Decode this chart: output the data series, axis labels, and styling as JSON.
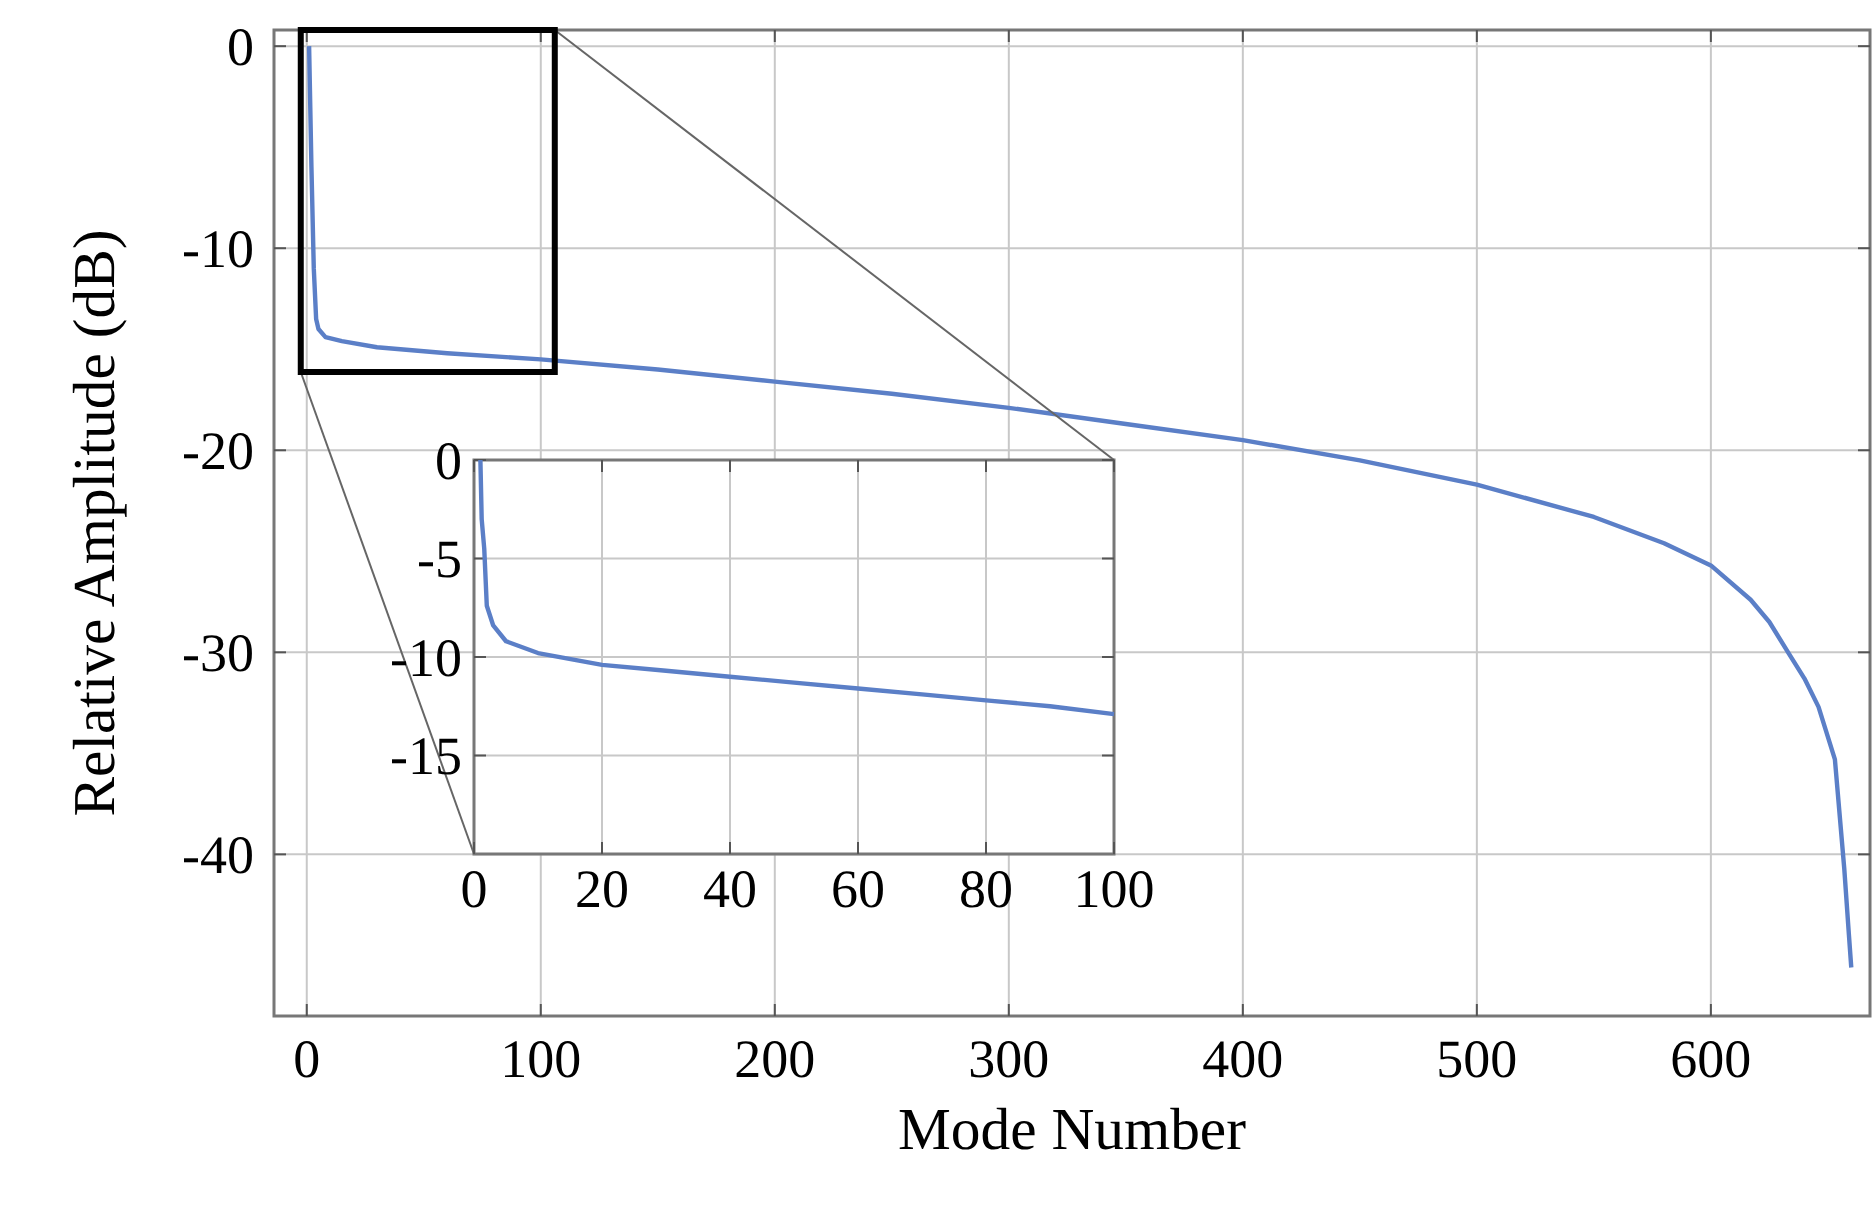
{
  "chart_data": [
    {
      "type": "line",
      "xlabel": "Mode Number",
      "ylabel": "Relative Amplitude (dB)",
      "xlim": [
        -14,
        668
      ],
      "ylim": [
        -48,
        0.8
      ],
      "xticks": [
        0,
        100,
        200,
        300,
        400,
        500,
        600
      ],
      "yticks": [
        0,
        -10,
        -20,
        -30,
        -40
      ],
      "grid": true,
      "series": [
        {
          "color": "#5b7fc7",
          "x": [
            1,
            2,
            3,
            4,
            5,
            8,
            15,
            30,
            60,
            100,
            150,
            200,
            250,
            300,
            350,
            400,
            450,
            500,
            550,
            580,
            600,
            617,
            625,
            633,
            640,
            646,
            653,
            657,
            659,
            660
          ],
          "values": [
            0,
            -6,
            -11,
            -13.5,
            -14,
            -14.4,
            -14.6,
            -14.9,
            -15.2,
            -15.5,
            -16,
            -16.6,
            -17.2,
            -17.9,
            -18.7,
            -19.5,
            -20.5,
            -21.7,
            -23.3,
            -24.6,
            -25.7,
            -27.4,
            -28.5,
            -30,
            -31.3,
            -32.7,
            -35.3,
            -40.7,
            -44,
            -45.6
          ]
        }
      ]
    },
    {
      "type": "line",
      "xlim": [
        0,
        100
      ],
      "ylim": [
        -20,
        0
      ],
      "xticks": [
        0,
        20,
        40,
        60,
        80,
        100
      ],
      "yticks": [
        0,
        -5,
        -10,
        -15
      ],
      "grid": true,
      "series": [
        {
          "color": "#5b7fc7",
          "x": [
            1,
            1.2,
            1.6,
            2,
            3,
            5,
            10,
            20,
            30,
            40,
            50,
            60,
            70,
            80,
            90,
            100
          ],
          "values": [
            0,
            -3,
            -4.5,
            -7.4,
            -8.4,
            -9.2,
            -9.8,
            -10.4,
            -10.7,
            -11,
            -11.3,
            -11.6,
            -11.9,
            -12.2,
            -12.5,
            -12.9
          ]
        }
      ]
    }
  ]
}
